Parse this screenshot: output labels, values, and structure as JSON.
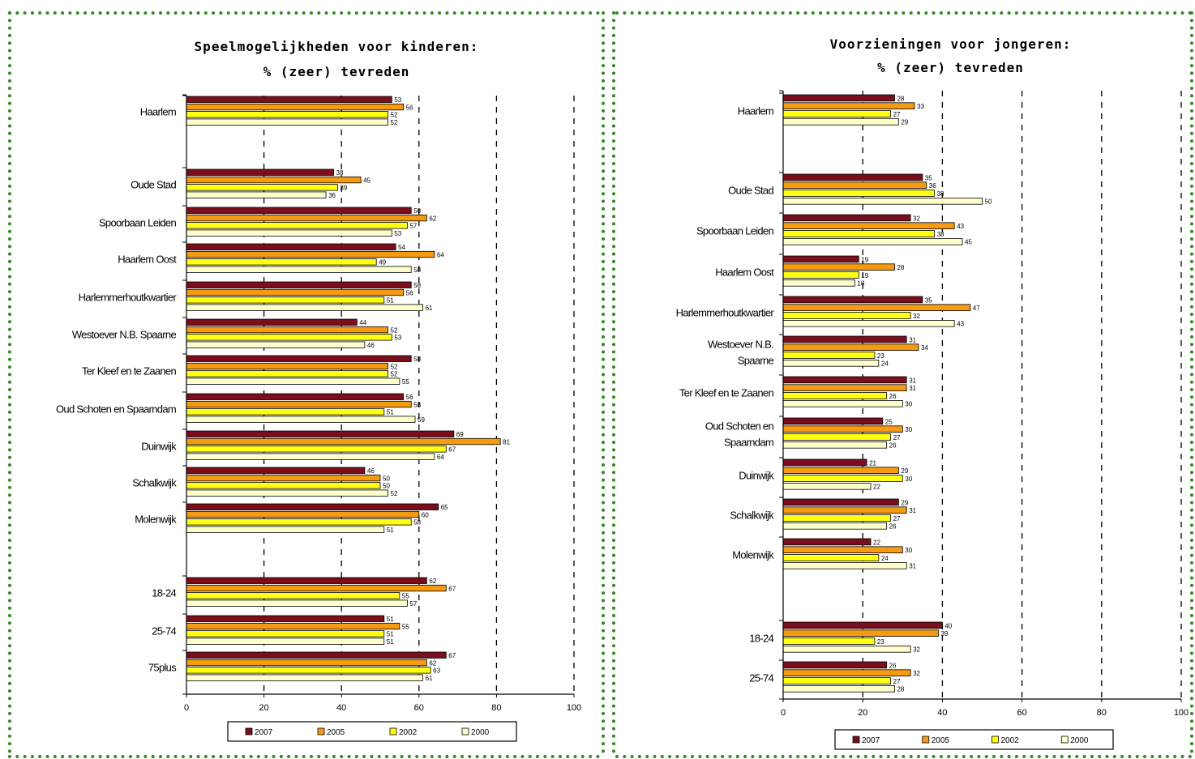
{
  "colors": {
    "border_dots": "#2e8b1e",
    "series": {
      "2007": "#7a0e1c",
      "2005": "#f59b12",
      "2002": "#ffff12",
      "2000": "#ffffcc"
    },
    "bar_outline": "#000000"
  },
  "chart_data": [
    {
      "type": "bar",
      "orientation": "horizontal",
      "title_lines": [
        "Speelmogelijkheden voor kinderen:",
        "% (zeer) tevreden"
      ],
      "xlim": [
        0,
        100
      ],
      "xticks": [
        0,
        20,
        40,
        60,
        80,
        100
      ],
      "x_tick_labels": [
        "0",
        "20",
        "40",
        "60",
        "80",
        "100"
      ],
      "vertical_gridlines": [
        20,
        40,
        60,
        80,
        100
      ],
      "legend_position": "bottom",
      "legend": [
        "2007",
        "2005",
        "2002",
        "2000"
      ],
      "series_names": [
        "2007",
        "2005",
        "2002",
        "2000"
      ],
      "groups": [
        {
          "label": "Haarlem",
          "values": [
            53,
            56,
            52,
            52
          ]
        },
        {
          "label": "Oude Stad",
          "values": [
            38,
            45,
            39,
            36
          ]
        },
        {
          "label": "Spoorbaan Leiden",
          "values": [
            58,
            62,
            57,
            53
          ]
        },
        {
          "label": "Haarlem Oost",
          "values": [
            54,
            64,
            49,
            58
          ]
        },
        {
          "label": "Harlemmerhoutkwartier",
          "values": [
            58,
            56,
            51,
            61
          ]
        },
        {
          "label": "Westoever N.B. Spaarne",
          "values": [
            44,
            52,
            53,
            46
          ]
        },
        {
          "label": "Ter Kleef en te Zaanen",
          "values": [
            58,
            52,
            52,
            55
          ]
        },
        {
          "label": "Oud Schoten en Spaarndam",
          "values": [
            56,
            58,
            51,
            59
          ]
        },
        {
          "label": "Duinwijk",
          "values": [
            69,
            81,
            67,
            64
          ]
        },
        {
          "label": "Schalkwijk",
          "values": [
            46,
            50,
            50,
            52
          ]
        },
        {
          "label": "Molenwijk",
          "values": [
            65,
            60,
            58,
            51
          ]
        },
        {
          "label": "18-24",
          "values": [
            62,
            67,
            55,
            57
          ]
        },
        {
          "label": "25-74",
          "values": [
            51,
            55,
            51,
            51
          ]
        },
        {
          "label": "75plus",
          "values": [
            67,
            62,
            63,
            61
          ]
        }
      ]
    },
    {
      "type": "bar",
      "orientation": "horizontal",
      "title_lines": [
        "Voorzieningen voor jongeren:",
        "% (zeer) tevreden"
      ],
      "xlim": [
        0,
        100
      ],
      "xticks": [
        0,
        20,
        40,
        60,
        80,
        100
      ],
      "x_tick_labels": [
        "0",
        "20",
        "40",
        "60",
        "80",
        "100"
      ],
      "vertical_gridlines": [
        20,
        40,
        60,
        80,
        100
      ],
      "legend_position": "bottom",
      "legend": [
        "2007",
        "2005",
        "2002",
        "2000"
      ],
      "series_names": [
        "2007",
        "2005",
        "2002",
        "2000"
      ],
      "groups": [
        {
          "label": "Haarlem",
          "values": [
            28,
            33,
            27,
            29
          ]
        },
        {
          "label": "Oude Stad",
          "values": [
            35,
            36,
            38,
            50
          ]
        },
        {
          "label": "Spoorbaan Leiden",
          "values": [
            32,
            43,
            38,
            45
          ]
        },
        {
          "label": "Haarlem Oost",
          "values": [
            19,
            28,
            19,
            18
          ]
        },
        {
          "label": "Harlemmerhoutkwartier",
          "values": [
            35,
            47,
            32,
            43
          ]
        },
        {
          "label": "Westoever N.B. Spaarne",
          "values": [
            31,
            34,
            23,
            24
          ]
        },
        {
          "label": "Ter Kleef en te Zaanen",
          "values": [
            31,
            31,
            26,
            30
          ]
        },
        {
          "label": "Oud Schoten en Spaarndam",
          "values": [
            25,
            30,
            27,
            26
          ]
        },
        {
          "label": "Duinwijk",
          "values": [
            21,
            29,
            30,
            22
          ]
        },
        {
          "label": "Schalkwijk",
          "values": [
            29,
            31,
            27,
            26
          ]
        },
        {
          "label": "Molenwijk",
          "values": [
            22,
            30,
            24,
            31
          ]
        },
        {
          "label": "18-24",
          "values": [
            40,
            39,
            23,
            32
          ]
        },
        {
          "label": "25-74",
          "values": [
            26,
            32,
            27,
            28
          ]
        }
      ]
    }
  ]
}
